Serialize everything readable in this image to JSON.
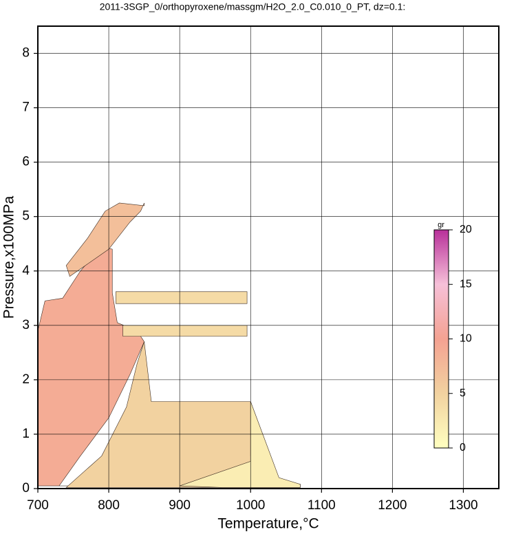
{
  "chart_data": {
    "type": "contour",
    "title": "2011-3SGP_0/orthopyroxene/massgm/H2O_2.0_C0.010_0_PT, dz=0.1:",
    "x_label": "Temperature,°C",
    "y_label": "Pressure,x100MPa",
    "xlim": [
      700,
      1350
    ],
    "ylim": [
      0,
      8.5
    ],
    "xticks": [
      700,
      800,
      900,
      1000,
      1100,
      1200,
      1300
    ],
    "yticks": [
      0,
      1,
      2,
      3,
      4,
      5,
      6,
      7,
      8
    ],
    "grid": true,
    "colorbar": {
      "label": "gr",
      "lim": [
        0,
        20
      ],
      "ticks": [
        0,
        5,
        10,
        15,
        20
      ],
      "colormap": [
        {
          "value": 0,
          "color": "#ffffc0"
        },
        {
          "value": 5,
          "color": "#f2d2a0"
        },
        {
          "value": 10,
          "color": "#f4a292"
        },
        {
          "value": 15,
          "color": "#f6c0d8"
        },
        {
          "value": 20,
          "color": "#b8309a"
        }
      ]
    },
    "regions": [
      {
        "level": 9,
        "x": [
          700,
          700,
          710,
          735,
          760,
          790,
          805,
          805,
          812,
          840,
          850,
          830,
          800,
          760,
          730,
          760
        ],
        "y": [
          0.05,
          2.9,
          3.45,
          3.5,
          4.0,
          4.45,
          4.4,
          3.6,
          3.05,
          2.9,
          2.7,
          2.1,
          1.3,
          0.6,
          0.05,
          0.05
        ]
      },
      {
        "level": 7,
        "x": [
          745,
          800,
          830,
          845,
          850,
          850,
          815,
          795,
          770,
          740
        ],
        "y": [
          3.9,
          4.4,
          4.9,
          5.1,
          5.25,
          5.2,
          5.25,
          5.1,
          4.6,
          4.1
        ]
      },
      {
        "level": 5,
        "x": [
          740,
          790,
          825,
          840,
          850,
          860,
          1000,
          1000,
          1040,
          1070,
          1070
        ],
        "y": [
          0.02,
          0.6,
          1.5,
          2.3,
          2.7,
          1.6,
          1.6,
          0.6,
          0.15,
          0.08,
          0.02
        ]
      },
      {
        "level": 2,
        "x": [
          900,
          1000,
          1000,
          1040,
          1070,
          1070,
          960
        ],
        "y": [
          0.05,
          0.5,
          1.6,
          0.2,
          0.08,
          0.02,
          0.02
        ]
      },
      {
        "level": 4,
        "x": [
          810,
          995,
          995,
          810
        ],
        "y": [
          3.4,
          3.4,
          3.62,
          3.62
        ]
      },
      {
        "level": 4,
        "x": [
          820,
          995,
          995,
          820
        ],
        "y": [
          2.8,
          2.8,
          3.0,
          3.0
        ]
      }
    ]
  }
}
